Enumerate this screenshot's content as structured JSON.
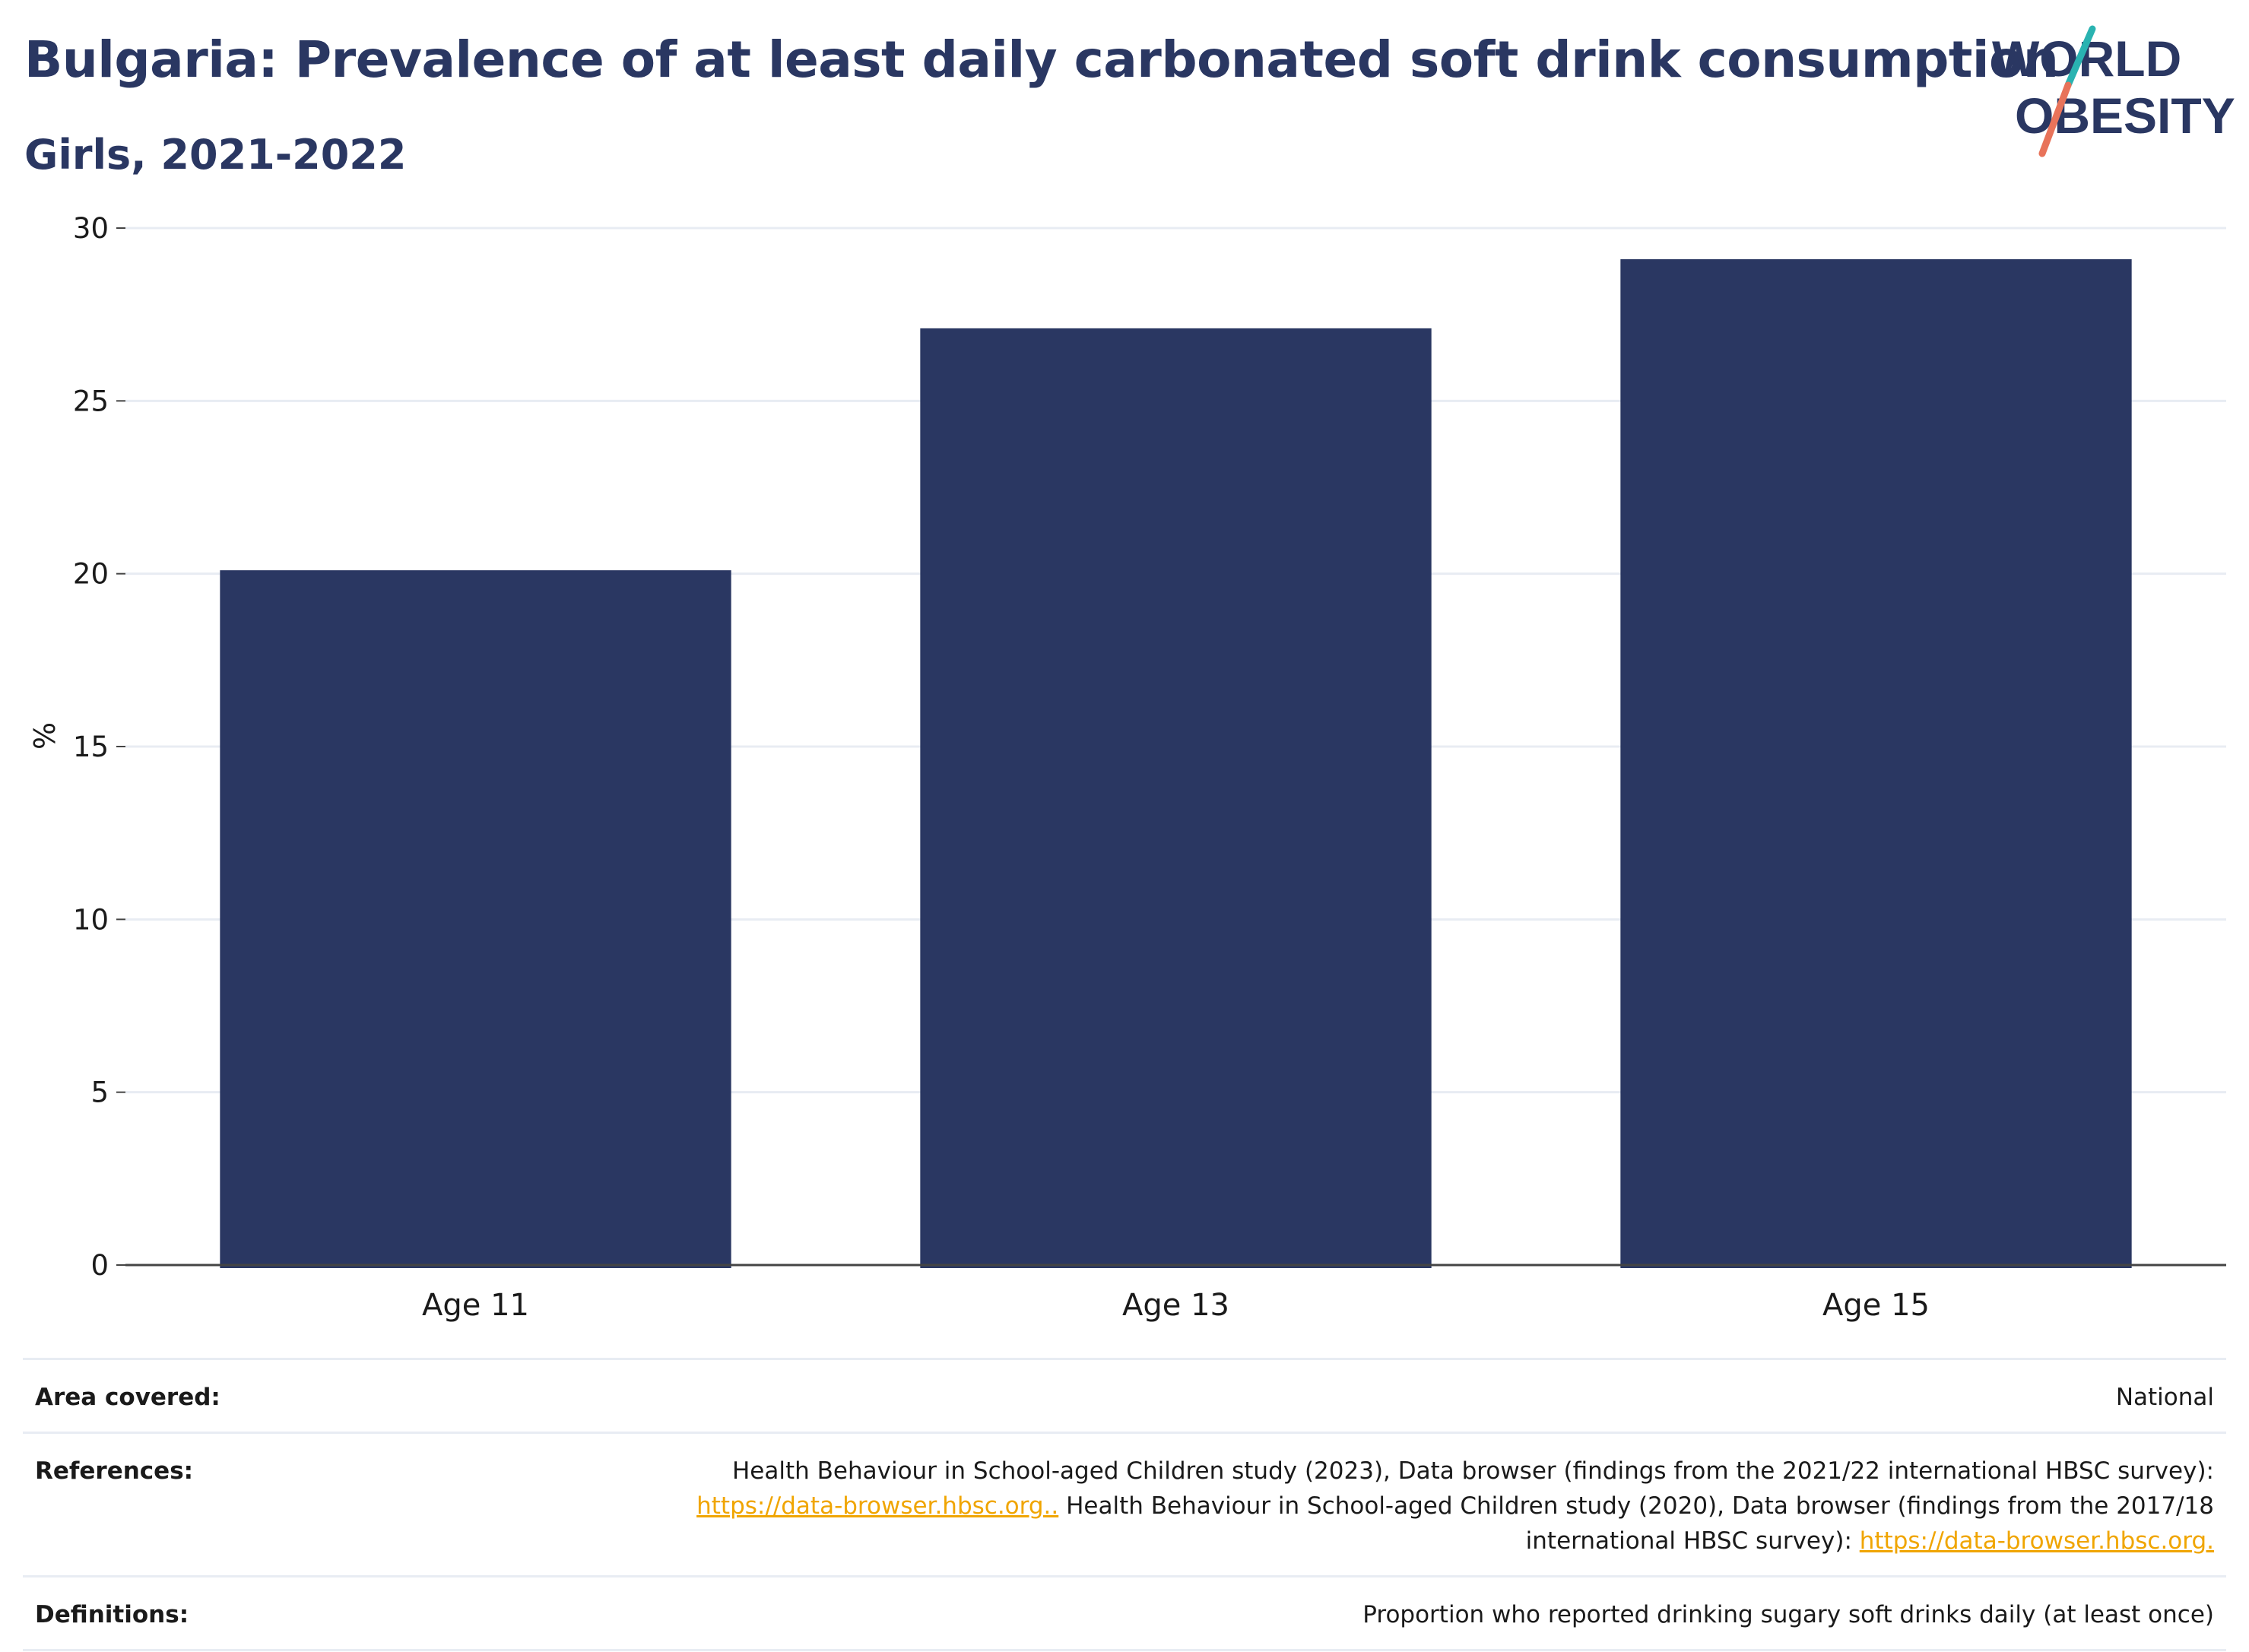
{
  "header": {
    "title": "Bulgaria: Prevalence of at least daily carbonated soft drink consumption",
    "subtitle": "Girls, 2021-2022"
  },
  "logo": {
    "line1": "WORLD",
    "line2": "OBESITY",
    "colors": {
      "text": "#2a3762",
      "stripe_teal": "#2ab3b1",
      "stripe_coral": "#e8735a"
    }
  },
  "chart_data": {
    "type": "bar",
    "title": "",
    "xlabel": "",
    "ylabel": "%",
    "categories": [
      "Age 11",
      "Age 13",
      "Age 15"
    ],
    "values": [
      20.1,
      27.1,
      29.1
    ],
    "ylim": [
      0,
      30
    ],
    "yticks": [
      0,
      5,
      10,
      15,
      20,
      25,
      30
    ],
    "grid": true,
    "legend": "none",
    "bar_color": "#2a3762"
  },
  "info": {
    "area_label": "Area covered:",
    "area_value": "National",
    "references_label": "References:",
    "references_part1": "Health Behaviour in School-aged Children study (2023), Data browser (findings from the 2021/22 international HBSC survey):",
    "references_link1": "https://data-browser.hbsc.org..",
    "references_part2": "Health Behaviour in School-aged Children study (2020), Data browser (findings from the 2017/18",
    "references_part3": "international HBSC survey):",
    "references_link2": "https://data-browser.hbsc.org.",
    "definitions_label": "Definitions:",
    "definitions_value": "Proportion who reported drinking sugary soft drinks daily (at least once)"
  }
}
